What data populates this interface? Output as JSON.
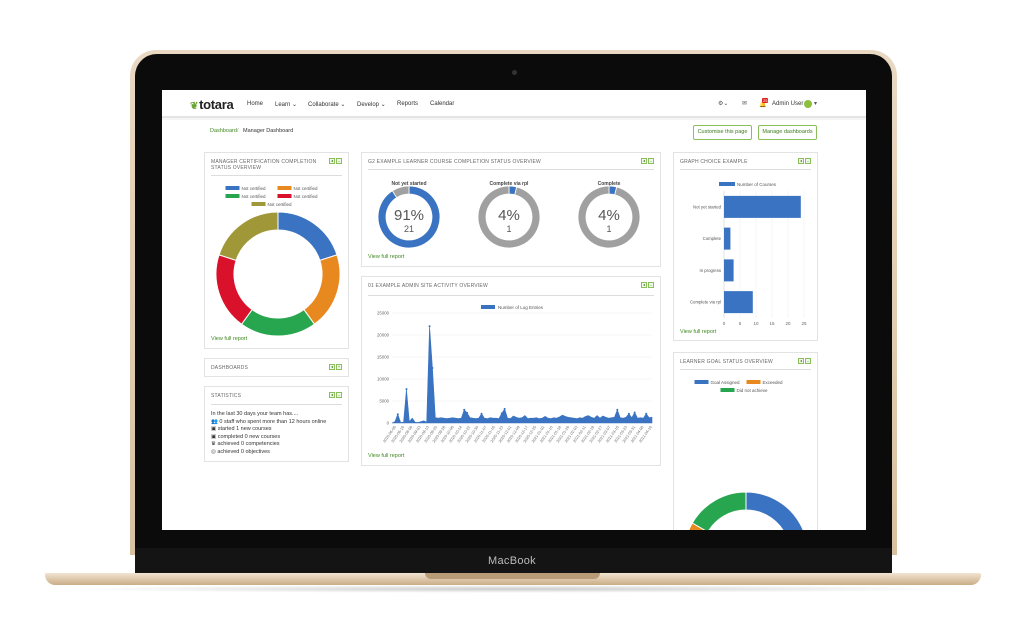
{
  "device": {
    "brand": "MacBook"
  },
  "nav": {
    "logo": "totara",
    "items": [
      {
        "label": "Home"
      },
      {
        "label": "Learn ⌄"
      },
      {
        "label": "Collaborate ⌄"
      },
      {
        "label": "Develop ⌄"
      },
      {
        "label": "Reports"
      },
      {
        "label": "Calendar"
      }
    ],
    "help_icon": "⚙⌄",
    "messages_icon": "✉",
    "notifications_badge": "25",
    "user": "Admin User"
  },
  "breadcrumb": {
    "home": "Dashboard",
    "separator": "/",
    "current": "Manager Dashboard"
  },
  "buttons": {
    "customise": "Customise this page",
    "manage": "Manage dashboards"
  },
  "view_full_report": "View full report",
  "colors": {
    "blue": "#3a73c1",
    "orange": "#e8891f",
    "green": "#27a64f",
    "red": "#d9112a",
    "olive": "#a09838",
    "gray": "#a0a0a0",
    "accent": "#3d8a1e"
  },
  "panels": {
    "cert": {
      "title": "MANAGER CERTIFICATION COMPLETION STATUS OVERVIEW",
      "chart_data": {
        "type": "pie",
        "donut": true,
        "legend": "top",
        "series": [
          {
            "name": "Not certified",
            "value": 1,
            "color": "#3a73c1"
          },
          {
            "name": "Not certified",
            "value": 1,
            "color": "#e8891f"
          },
          {
            "name": "Not certified",
            "value": 1,
            "color": "#27a64f"
          },
          {
            "name": "Not certified",
            "value": 1,
            "color": "#d9112a"
          },
          {
            "name": "Not certified",
            "value": 1,
            "color": "#a09838"
          }
        ]
      }
    },
    "dashboards": {
      "title": "DASHBOARDS"
    },
    "statistics": {
      "title": "STATISTICS",
      "intro": "In the last 30 days your team has....",
      "items": [
        {
          "icon": "staff-icon",
          "glyph": "👥",
          "text": "0 staff who spent more than 12 hours online"
        },
        {
          "icon": "course-started-icon",
          "glyph": "▣",
          "text": "started 1 new courses"
        },
        {
          "icon": "course-completed-icon",
          "glyph": "▣",
          "text": "completed 0 new courses"
        },
        {
          "icon": "competency-icon",
          "glyph": "♛",
          "text": "achieved 0 competencies"
        },
        {
          "icon": "objective-icon",
          "glyph": "◎",
          "text": "achieved 0 objectives"
        }
      ]
    },
    "learner_completion": {
      "title": "G2 EXAMPLE LEARNER COURSE COMPLETION STATUS OVERVIEW",
      "chart_data": [
        {
          "type": "pie",
          "donut": true,
          "title": "Not yet started",
          "percent": "91%",
          "count": "21",
          "fraction": 0.91
        },
        {
          "type": "pie",
          "donut": true,
          "title": "Complete via rpl",
          "percent": "4%",
          "count": "1",
          "fraction": 0.04
        },
        {
          "type": "pie",
          "donut": true,
          "title": "Complete",
          "percent": "4%",
          "count": "1",
          "fraction": 0.04
        }
      ]
    },
    "activity": {
      "title": "01 EXAMPLE ADMIN SITE ACTIVITY OVERVIEW",
      "chart_data": {
        "type": "area",
        "legend": "top",
        "grid": true,
        "series": [
          {
            "name": "Number of Log Entries",
            "color": "#3a73c1",
            "values": [
              0,
              300,
              2000,
              100,
              200,
              7700,
              300,
              1100,
              200,
              100,
              300,
              500,
              200,
              22000,
              12500,
              1200,
              1100,
              1200,
              1100,
              1000,
              1100,
              1200,
              1100,
              1000,
              1100,
              3000,
              2300,
              1200,
              1100,
              1000,
              1100,
              2100,
              1100,
              1000,
              1200,
              1100,
              1100,
              1000,
              2200,
              3200,
              1100,
              1000,
              1600,
              1300,
              1100,
              1200,
              1700,
              1000,
              1100,
              1100,
              1200,
              1000,
              1100,
              1500,
              1100,
              1000,
              1200,
              1100,
              1400,
              1800,
              1500,
              1300,
              1200,
              1100,
              1000,
              1200,
              1100,
              1500,
              1700,
              1300,
              1100,
              1700,
              1100,
              1600,
              1300,
              1100,
              1200,
              1300,
              3000,
              1200,
              1100,
              1300,
              2100,
              1200,
              2400,
              1100,
              1200,
              1100,
              2100,
              1200,
              1300
            ]
          }
        ],
        "ylim": [
          0,
          25000
        ],
        "yticks": [
          "25000",
          "20000",
          "15000",
          "10000",
          "5000",
          "0"
        ],
        "x_tick_labels": [
          "2020-06-06",
          "2020-06-16",
          "2020-08-06",
          "2020-09-03",
          "2020-09-13",
          "2020-09-20",
          "2020-09-28",
          "2020-10-06",
          "2020-10-14",
          "2020-10-22",
          "2020-10-30",
          "2020-11-07",
          "2020-11-15",
          "2020-11-23",
          "2020-12-01",
          "2020-12-09",
          "2020-12-17",
          "2020-12-25",
          "2021-01-02",
          "2021-01-10",
          "2021-01-18",
          "2021-01-26",
          "2021-02-03",
          "2021-02-11",
          "2021-02-19",
          "2021-02-27",
          "2021-03-07",
          "2021-03-15",
          "2021-03-23",
          "2021-03-31",
          "2021-04-08",
          "2021-04-16"
        ]
      }
    },
    "graph_choice": {
      "title": "GRAPH CHOICE EXAMPLE",
      "chart_data": {
        "type": "bar",
        "orientation": "horizontal",
        "legend": "top",
        "grid": true,
        "categories": [
          "Not yet started",
          "Complete",
          "In progress",
          "Complete via rpl"
        ],
        "series": [
          {
            "name": "Number of Courses",
            "color": "#3a73c1",
            "values": [
              24,
              2,
              3,
              9
            ]
          }
        ],
        "xlim": [
          0,
          25
        ],
        "xticks": [
          "0",
          "5",
          "10",
          "15",
          "20",
          "25"
        ]
      }
    },
    "goal": {
      "title": "LEARNER GOAL STATUS OVERVIEW",
      "chart_data": {
        "type": "pie",
        "donut": true,
        "legend": "top",
        "series": [
          {
            "name": "Goal Assigned",
            "value": 4,
            "color": "#3a73c1"
          },
          {
            "name": "Exceeded",
            "value": 1,
            "color": "#e8891f"
          },
          {
            "name": "Did not achieve",
            "value": 1,
            "color": "#27a64f"
          }
        ]
      }
    }
  }
}
